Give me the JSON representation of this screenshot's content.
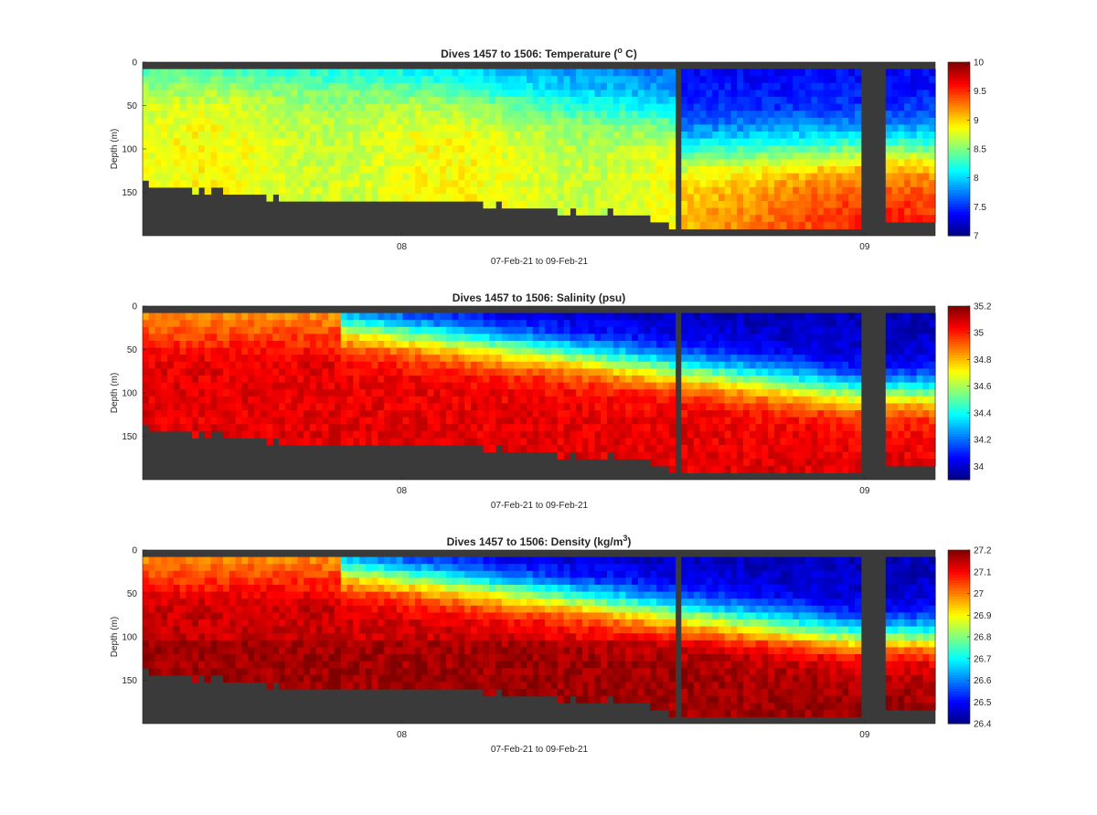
{
  "chart_data": [
    {
      "type": "heatmap",
      "title": "Dives 1457 to 1506: Temperature (° C)",
      "title_main": "Dives 1457 to 1506: Temperature (",
      "title_sup": "o",
      "title_end": " C)",
      "xlabel": "07-Feb-21 to 09-Feb-21",
      "ylabel": "Depth (m)",
      "x_range": [
        "07-Feb-21",
        "09-Feb-21"
      ],
      "x_ticks": [
        "08",
        "09"
      ],
      "y_ticks": [
        0,
        50,
        100,
        150
      ],
      "ylim": [
        0,
        200
      ],
      "y_reversed": true,
      "colorbar_range": [
        7,
        10
      ],
      "colorbar_ticks": [
        7,
        7.5,
        8,
        8.5,
        9,
        9.5,
        10
      ],
      "colormap": "jet",
      "no_data_color": "#3a3a3a"
    },
    {
      "type": "heatmap",
      "title": "Dives 1457 to 1506: Salinity (psu)",
      "title_main": "Dives 1457 to 1506: Salinity (psu)",
      "title_sup": "",
      "title_end": "",
      "xlabel": "07-Feb-21 to 09-Feb-21",
      "ylabel": "Depth (m)",
      "x_range": [
        "07-Feb-21",
        "09-Feb-21"
      ],
      "x_ticks": [
        "08",
        "09"
      ],
      "y_ticks": [
        0,
        50,
        100,
        150
      ],
      "ylim": [
        0,
        200
      ],
      "y_reversed": true,
      "colorbar_range": [
        33.9,
        35.2
      ],
      "colorbar_ticks": [
        34,
        34.2,
        34.4,
        34.6,
        34.8,
        35,
        35.2
      ],
      "colormap": "jet",
      "no_data_color": "#3a3a3a"
    },
    {
      "type": "heatmap",
      "title": "Dives 1457 to 1506: Density (kg/m³)",
      "title_main": "Dives 1457 to 1506: Density (kg/m",
      "title_sup": "3",
      "title_end": ")",
      "xlabel": "07-Feb-21 to 09-Feb-21",
      "ylabel": "Depth (m)",
      "x_range": [
        "07-Feb-21",
        "09-Feb-21"
      ],
      "x_ticks": [
        "08",
        "09"
      ],
      "y_ticks": [
        0,
        50,
        100,
        150
      ],
      "ylim": [
        0,
        200
      ],
      "y_reversed": true,
      "colorbar_range": [
        26.4,
        27.2
      ],
      "colorbar_ticks": [
        26.4,
        26.5,
        26.6,
        26.7,
        26.8,
        26.9,
        27,
        27.1,
        27.2
      ],
      "colormap": "jet",
      "no_data_color": "#3a3a3a"
    }
  ]
}
